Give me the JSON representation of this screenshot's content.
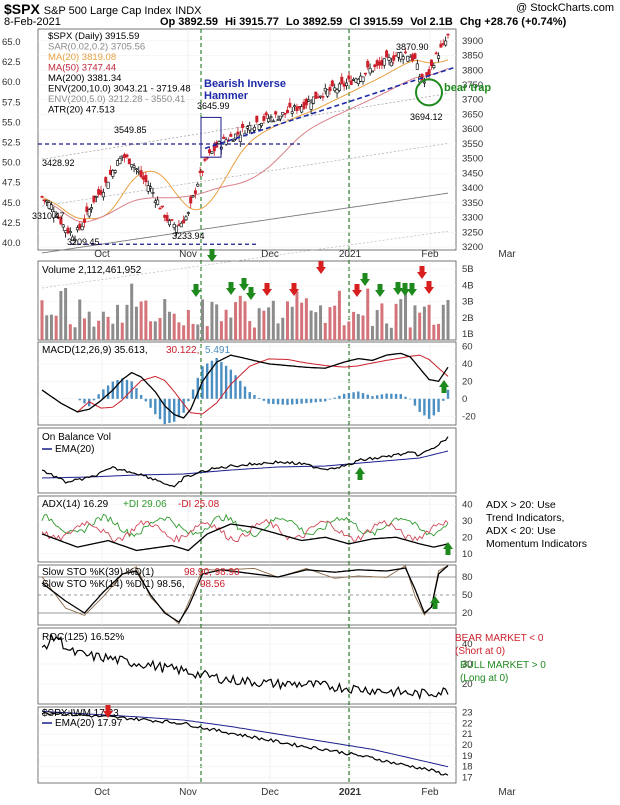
{
  "header": {
    "symbol": "$SPX",
    "name": "S&P 500 Large Cap Index",
    "exchange": "INDX",
    "watermark": "@ StockCharts.com",
    "date": "8-Feb-2021",
    "op": "Op 3892.59",
    "hi": "Hi 3915.77",
    "lo": "Lo 3892.59",
    "cl": "Cl 3915.59",
    "vol": "Vol 2.1B",
    "chg": "Chg +28.76 (+0.74%)"
  },
  "price_panel": {
    "legend": [
      {
        "text": "$SPX (Daily) 3915.59",
        "color": "#000000"
      },
      {
        "text": "SAR(0.02,0.2) 3705.56",
        "color": "#8a8a8a"
      },
      {
        "text": "MA(20) 3819.08",
        "color": "#e8a040"
      },
      {
        "text": "MA(50) 3747.44",
        "color": "#c0283c"
      },
      {
        "text": "MA(200) 3381.34",
        "color": "#000000"
      },
      {
        "text": "ENV(200,10.0) 3043.21 - 3719.48",
        "color": "#000000"
      },
      {
        "text": "ENV(200,5.0) 3212.28 - 3550.41",
        "color": "#8a8a8a"
      },
      {
        "text": "ATR(20) 47.513",
        "color": "#000000"
      }
    ],
    "right_ticks": [
      "3900",
      "3850",
      "3800",
      "3750",
      "3700",
      "3650",
      "3600",
      "3550",
      "3500",
      "3450",
      "3400",
      "3350",
      "3300",
      "3250",
      "3200"
    ],
    "left_ticks": [
      "65.0",
      "62.5",
      "60.0",
      "57.5",
      "55.0",
      "52.5",
      "50.0",
      "47.5",
      "45.0",
      "42.5",
      "40.0"
    ],
    "annotations": {
      "bearish_hammer": "Bearish Inverse Hammer",
      "bear_trap": "bear trap",
      "p3870": "3870.90",
      "p3645": "3645.99",
      "p3549": "3549.85",
      "p3428": "3428.92",
      "p3310": "3310.47",
      "p3209": "3209.45",
      "p3233": "3233.94",
      "p3694": "3694.12"
    }
  },
  "x_labels": [
    "Oct",
    "Nov",
    "Dec",
    "2021",
    "Feb",
    "Mar"
  ],
  "volume_panel": {
    "label": "Volume 2,112,461,952",
    "ticks": [
      "5B",
      "4B",
      "3B",
      "2B",
      "1B"
    ]
  },
  "macd_panel": {
    "label_black": "MACD(12,26,9) 35.613,",
    "label_red": "30.122,",
    "label_blue": "5.491",
    "ticks": [
      "60",
      "40",
      "20",
      "0",
      "-20"
    ]
  },
  "obv_panel": {
    "label": "On Balance Vol",
    "ema_label": "EMA(20)"
  },
  "adx_panel": {
    "label_black": "ADX(14) 16.29",
    "label_green": "+DI 29.06",
    "label_red": "-DI 25.08",
    "note": [
      "ADX > 20: Use",
      "Trend Indicators,",
      "ADX < 20: Use",
      "Momentum Indicators"
    ],
    "ticks": [
      "40",
      "30",
      "20",
      "10"
    ]
  },
  "sto_panel": {
    "label1_black": "Slow STO %K(39) %D(1)",
    "label1_vals": "98.90, 98.90",
    "label2_black": "Slow STO %K(14) %D(1) 98.56,",
    "label2_red": "98.56",
    "ticks": [
      "80",
      "50",
      "20"
    ]
  },
  "roc_panel": {
    "label": "ROC(125) 16.52%",
    "bear": [
      "BEAR MARKET < 0",
      "(Short at 0)"
    ],
    "bull": [
      "BULL MARKET > 0",
      "(Long at 0)"
    ],
    "ticks": [
      "40",
      "30",
      "20"
    ]
  },
  "ratio_panel": {
    "label": "$SPX:IWM 17.23",
    "ema_label": "EMA(20) 17.97",
    "ticks": [
      "23",
      "22",
      "21",
      "20",
      "19",
      "18",
      "17"
    ]
  },
  "chart_data": [
    {
      "type": "candlestick",
      "title": "$SPX (Daily)",
      "x_range": [
        "2020-09-14",
        "2021-03-05"
      ],
      "y_range_right": [
        3190,
        3940
      ],
      "series": [
        {
          "name": "$SPX",
          "close_path": [
            [
              0,
              3370
            ],
            [
              5,
              3330
            ],
            [
              10,
              3260
            ],
            [
              14,
              3240
            ],
            [
              18,
              3290
            ],
            [
              22,
              3360
            ],
            [
              26,
              3400
            ],
            [
              30,
              3460
            ],
            [
              34,
              3510
            ],
            [
              38,
              3490
            ],
            [
              42,
              3440
            ],
            [
              46,
              3400
            ],
            [
              50,
              3340
            ],
            [
              54,
              3280
            ],
            [
              58,
              3275
            ],
            [
              62,
              3310
            ],
            [
              66,
              3420
            ],
            [
              70,
              3500
            ],
            [
              74,
              3540
            ],
            [
              78,
              3565
            ],
            [
              82,
              3580
            ],
            [
              86,
              3600
            ],
            [
              90,
              3620
            ],
            [
              94,
              3635
            ],
            [
              98,
              3640
            ],
            [
              102,
              3650
            ],
            [
              106,
              3665
            ],
            [
              110,
              3680
            ],
            [
              114,
              3700
            ],
            [
              118,
              3720
            ],
            [
              122,
              3730
            ],
            [
              126,
              3740
            ],
            [
              130,
              3760
            ],
            [
              134,
              3780
            ],
            [
              138,
              3800
            ],
            [
              142,
              3810
            ],
            [
              146,
              3830
            ],
            [
              150,
              3850
            ],
            [
              154,
              3860
            ],
            [
              158,
              3835
            ],
            [
              160,
              3780
            ],
            [
              162,
              3760
            ],
            [
              164,
              3790
            ],
            [
              166,
              3830
            ],
            [
              168,
              3860
            ],
            [
              170,
              3880
            ],
            [
              172,
              3915
            ]
          ]
        },
        {
          "name": "MA(20)",
          "value": 3819.08
        },
        {
          "name": "MA(50)",
          "value": 3747.44
        },
        {
          "name": "MA(200)",
          "value": 3381.34
        }
      ],
      "annotated_prices": [
        3870.9,
        3645.99,
        3549.85,
        3428.92,
        3310.47,
        3209.45,
        3233.94,
        3694.12
      ]
    },
    {
      "type": "bar",
      "title": "Volume",
      "y_range": [
        0,
        5000000000
      ],
      "last_value": 2112461952
    },
    {
      "type": "line",
      "title": "MACD(12,26,9)",
      "y_range": [
        -30,
        65
      ],
      "series": [
        {
          "name": "MACD",
          "last": 35.613
        },
        {
          "name": "Signal",
          "last": 30.122
        },
        {
          "name": "Histogram",
          "last": 5.491
        }
      ]
    },
    {
      "type": "line",
      "title": "ADX(14)",
      "y_range": [
        5,
        45
      ],
      "series": [
        {
          "name": "ADX",
          "last": 16.29
        },
        {
          "name": "+DI",
          "last": 29.06
        },
        {
          "name": "-DI",
          "last": 25.08
        }
      ]
    },
    {
      "type": "line",
      "title": "Slow STO",
      "y_range": [
        0,
        100
      ],
      "series": [
        {
          "name": "%K(39)",
          "last": 98.9
        },
        {
          "name": "%K(14)",
          "last": 98.56
        }
      ]
    },
    {
      "type": "line",
      "title": "ROC(125)",
      "y_range": [
        10,
        48
      ],
      "series": [
        {
          "name": "ROC",
          "last": 16.52
        }
      ]
    },
    {
      "type": "line",
      "title": "$SPX:IWM",
      "y_range": [
        16.5,
        23.5
      ],
      "series": [
        {
          "name": "$SPX:IWM",
          "last": 17.23
        },
        {
          "name": "EMA(20)",
          "last": 17.97
        }
      ]
    }
  ],
  "colors": {
    "up": "#2e8b2e",
    "down": "#cc1f2a",
    "macd_hist": "#4a8ec2",
    "obv_ema": "#1a1f8c",
    "trend_blue": "#1f2aa8",
    "green_arrow": "#1e8a1e",
    "red_arrow": "#d81e1e"
  }
}
